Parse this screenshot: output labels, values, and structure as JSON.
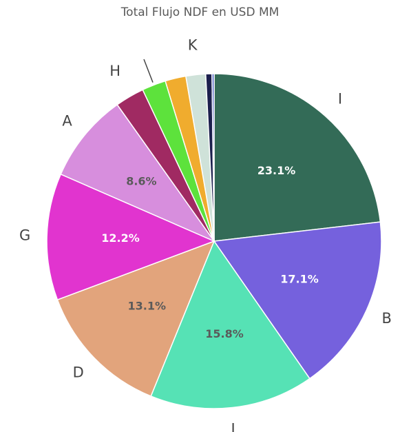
{
  "chart_data": {
    "type": "pie",
    "title": "Total Flujo NDF en USD MM",
    "slices": [
      {
        "label": "I",
        "value": 23.1,
        "value_label": "23.1%",
        "color": "#336b57",
        "label_color": "#ffffff"
      },
      {
        "label": "B",
        "value": 17.1,
        "value_label": "17.1%",
        "color": "#7561dd",
        "label_color": "#ffffff"
      },
      {
        "label": "L",
        "value": 15.8,
        "value_label": "15.8%",
        "color": "#56e2b5",
        "label_color": "#5a5a5a"
      },
      {
        "label": "D",
        "value": 13.1,
        "value_label": "13.1%",
        "color": "#e2a47c",
        "label_color": "#5a5a5a"
      },
      {
        "label": "G",
        "value": 12.2,
        "value_label": "12.2%",
        "color": "#e134cf",
        "label_color": "#ffffff"
      },
      {
        "label": "A",
        "value": 8.6,
        "value_label": "8.6%",
        "color": "#d78edd",
        "label_color": "#5a5a5a"
      },
      {
        "label": "H",
        "value": 2.8,
        "value_label": "",
        "color": "#a02a62",
        "label_color": "#5a5a5a"
      },
      {
        "label": "",
        "value": 2.3,
        "value_label": "",
        "color": "#5de23c",
        "label_color": "#5a5a5a"
      },
      {
        "label": "",
        "value": 2.0,
        "value_label": "",
        "color": "#f0ac2e",
        "label_color": "#5a5a5a"
      },
      {
        "label": "K",
        "value": 1.9,
        "value_label": "",
        "color": "#cfe2d9",
        "label_color": "#5a5a5a"
      },
      {
        "label": "",
        "value": 0.6,
        "value_label": "",
        "color": "#1b1f4d",
        "label_color": "#5a5a5a"
      },
      {
        "label": "",
        "value": 0.2,
        "value_label": "",
        "color": "#4a5cc4",
        "label_color": "#5a5a5a"
      }
    ]
  }
}
